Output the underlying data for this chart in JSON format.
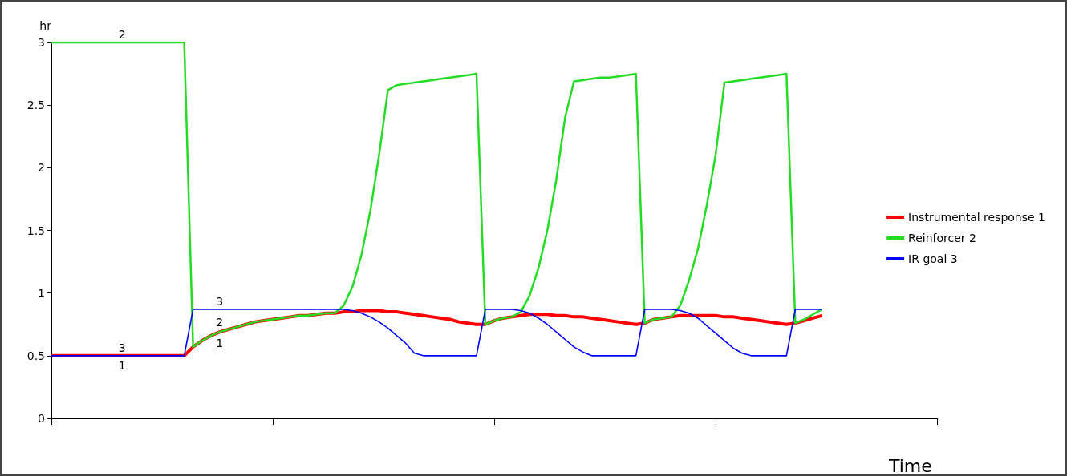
{
  "chart_data": {
    "type": "line",
    "xlabel": "Time",
    "ylabel": "hr",
    "ylim": [
      0,
      3
    ],
    "yticks": [
      0,
      0.5,
      1,
      1.5,
      2,
      2.5,
      3
    ],
    "grid": false,
    "legend": "right",
    "marker": "none",
    "categories": [
      null,
      null,
      null,
      null,
      null,
      null,
      null,
      null,
      null,
      null,
      null,
      null,
      null,
      null,
      null,
      null,
      null,
      null,
      null,
      null,
      null,
      null,
      null,
      null,
      null,
      null,
      null,
      null,
      null,
      null,
      null,
      null,
      null,
      null,
      null,
      null,
      null,
      null,
      null,
      null,
      null,
      null,
      null,
      null,
      null,
      null,
      null,
      null,
      null,
      null,
      null,
      null,
      null,
      null,
      null,
      null,
      null,
      null,
      null,
      null,
      null,
      null,
      null,
      null,
      null,
      null,
      null,
      null,
      null,
      null,
      null,
      null,
      null,
      null,
      null,
      null,
      null,
      null,
      null,
      null,
      null,
      null,
      null,
      null,
      null,
      null,
      null,
      null,
      null,
      null,
      null,
      null,
      null,
      null,
      null,
      null,
      null,
      null,
      null,
      null,
      null
    ],
    "series": [
      {
        "name": "Instrumental response 1",
        "color": "#ff0000",
        "values": [
          0.5,
          0.5,
          0.5,
          0.5,
          0.5,
          0.5,
          0.5,
          0.5,
          0.5,
          0.5,
          0.5,
          0.5,
          0.5,
          0.5,
          0.5,
          0.5,
          0.57,
          0.62,
          0.66,
          0.69,
          0.71,
          0.73,
          0.75,
          0.77,
          0.78,
          0.79,
          0.8,
          0.81,
          0.82,
          0.82,
          0.83,
          0.84,
          0.84,
          0.85,
          0.85,
          0.86,
          0.86,
          0.86,
          0.85,
          0.85,
          0.84,
          0.83,
          0.82,
          0.81,
          0.8,
          0.79,
          0.77,
          0.76,
          0.75,
          0.75,
          0.78,
          0.8,
          0.81,
          0.82,
          0.83,
          0.83,
          0.83,
          0.82,
          0.82,
          0.81,
          0.81,
          0.8,
          0.79,
          0.78,
          0.77,
          0.76,
          0.75,
          0.76,
          0.79,
          0.8,
          0.81,
          0.82,
          0.82,
          0.82,
          0.82,
          0.82,
          0.81,
          0.81,
          0.8,
          0.79,
          0.78,
          0.77,
          0.76,
          0.75,
          0.76,
          0.78,
          0.8,
          0.82,
          null,
          null,
          null,
          null,
          null,
          null,
          null,
          null,
          null,
          null,
          null,
          null,
          null
        ]
      },
      {
        "name": "Reinforcer 2",
        "color": "#22dd22",
        "values": [
          3,
          3,
          3,
          3,
          3,
          3,
          3,
          3,
          3,
          3,
          3,
          3,
          3,
          3,
          3,
          3,
          0.57,
          0.62,
          0.66,
          0.69,
          0.71,
          0.73,
          0.75,
          0.77,
          0.78,
          0.79,
          0.8,
          0.81,
          0.82,
          0.82,
          0.83,
          0.84,
          0.84,
          0.9,
          1.05,
          1.3,
          1.65,
          2.1,
          2.62,
          2.66,
          2.67,
          2.68,
          2.69,
          2.7,
          2.71,
          2.72,
          2.73,
          2.74,
          2.75,
          0.75,
          0.78,
          0.8,
          0.81,
          0.85,
          0.98,
          1.2,
          1.5,
          1.9,
          2.4,
          2.69,
          2.7,
          2.71,
          2.72,
          2.72,
          2.73,
          2.74,
          2.75,
          0.76,
          0.79,
          0.8,
          0.81,
          0.9,
          1.1,
          1.35,
          1.7,
          2.1,
          2.68,
          2.69,
          2.7,
          2.71,
          2.72,
          2.73,
          2.74,
          2.75,
          0.76,
          0.79,
          0.83,
          0.87,
          null,
          null,
          null,
          null,
          null,
          null,
          null,
          null,
          null,
          null,
          null,
          null,
          null
        ]
      },
      {
        "name": "IR goal 3",
        "color": "#0000ff",
        "values": [
          0.5,
          0.5,
          0.5,
          0.5,
          0.5,
          0.5,
          0.5,
          0.5,
          0.5,
          0.5,
          0.5,
          0.5,
          0.5,
          0.5,
          0.5,
          0.5,
          0.87,
          0.87,
          0.87,
          0.87,
          0.87,
          0.87,
          0.87,
          0.87,
          0.87,
          0.87,
          0.87,
          0.87,
          0.87,
          0.87,
          0.87,
          0.87,
          0.87,
          0.87,
          0.86,
          0.84,
          0.81,
          0.77,
          0.72,
          0.66,
          0.6,
          0.52,
          0.5,
          0.5,
          0.5,
          0.5,
          0.5,
          0.5,
          0.5,
          0.87,
          0.87,
          0.87,
          0.87,
          0.86,
          0.84,
          0.8,
          0.75,
          0.69,
          0.63,
          0.57,
          0.53,
          0.5,
          0.5,
          0.5,
          0.5,
          0.5,
          0.5,
          0.87,
          0.87,
          0.87,
          0.87,
          0.86,
          0.84,
          0.8,
          0.74,
          0.68,
          0.62,
          0.56,
          0.52,
          0.5,
          0.5,
          0.5,
          0.5,
          0.5,
          0.87,
          0.87,
          0.87,
          0.87,
          null,
          null,
          null,
          null,
          null,
          null,
          null,
          null,
          null,
          null,
          null,
          null,
          null
        ]
      }
    ],
    "annotations": [
      "2",
      "3",
      "1",
      "3",
      "2",
      "1"
    ]
  }
}
